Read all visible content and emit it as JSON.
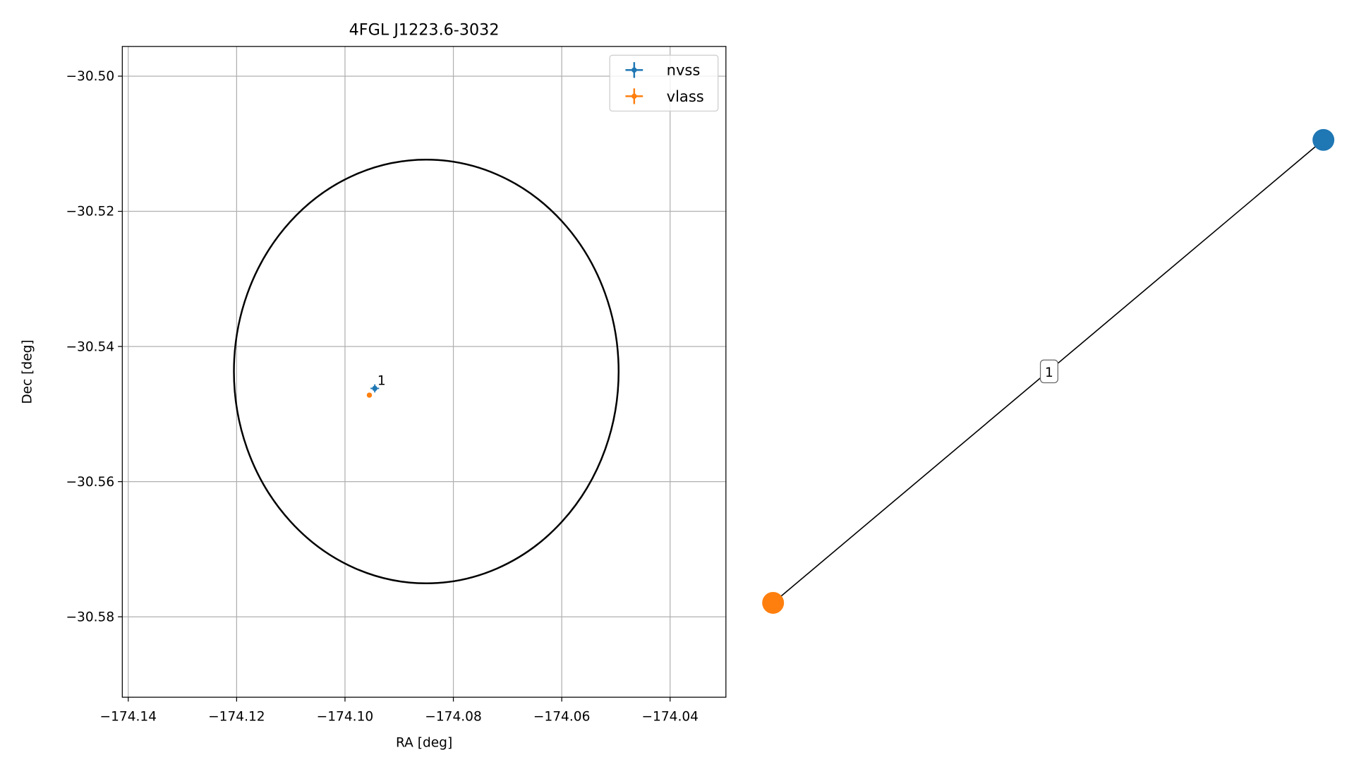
{
  "chart_data": [
    {
      "type": "scatter",
      "title": "4FGL J1223.6-3032",
      "x_label": "RA [deg]",
      "y_label": "Dec [deg]",
      "xlim": [
        -174.1411,
        -174.0297
      ],
      "ylim": [
        -30.5919,
        -30.4956
      ],
      "xticks": [
        {
          "value": -174.14,
          "label": "−174.14"
        },
        {
          "value": -174.12,
          "label": "−174.12"
        },
        {
          "value": -174.1,
          "label": "−174.10"
        },
        {
          "value": -174.08,
          "label": "−174.08"
        },
        {
          "value": -174.06,
          "label": "−174.06"
        },
        {
          "value": -174.04,
          "label": "−174.04"
        }
      ],
      "yticks": [
        {
          "value": -30.5,
          "label": "−30.50"
        },
        {
          "value": -30.52,
          "label": "−30.52"
        },
        {
          "value": -30.54,
          "label": "−30.54"
        },
        {
          "value": -30.56,
          "label": "−30.56"
        },
        {
          "value": -30.58,
          "label": "−30.58"
        }
      ],
      "grid": true,
      "legend": "upper right",
      "series": [
        {
          "name": "nvss",
          "color": "#1f77b4",
          "x": [
            -174.0945
          ],
          "values": [
            -30.5462
          ],
          "xerr": [
            0.0008
          ],
          "yerr": [
            0.0006
          ]
        },
        {
          "name": "vlass",
          "color": "#ff7f0e",
          "x": [
            -174.0955
          ],
          "values": [
            -30.5472
          ],
          "xerr": [
            0.0002
          ],
          "yerr": [
            0.0002
          ]
        }
      ],
      "ellipse": {
        "center_x": -174.085,
        "center_y": -30.5437,
        "width": 0.071,
        "height": 0.0627,
        "color": "#000000"
      },
      "annotations": [
        {
          "text": "1",
          "x": -174.0945,
          "y": -30.5462
        }
      ]
    },
    {
      "type": "network",
      "nodes": [
        {
          "color": "#1f77b4"
        },
        {
          "color": "#ff7f0e"
        }
      ],
      "edges": [
        {
          "source": 0,
          "target": 1,
          "label": "1"
        }
      ]
    }
  ]
}
